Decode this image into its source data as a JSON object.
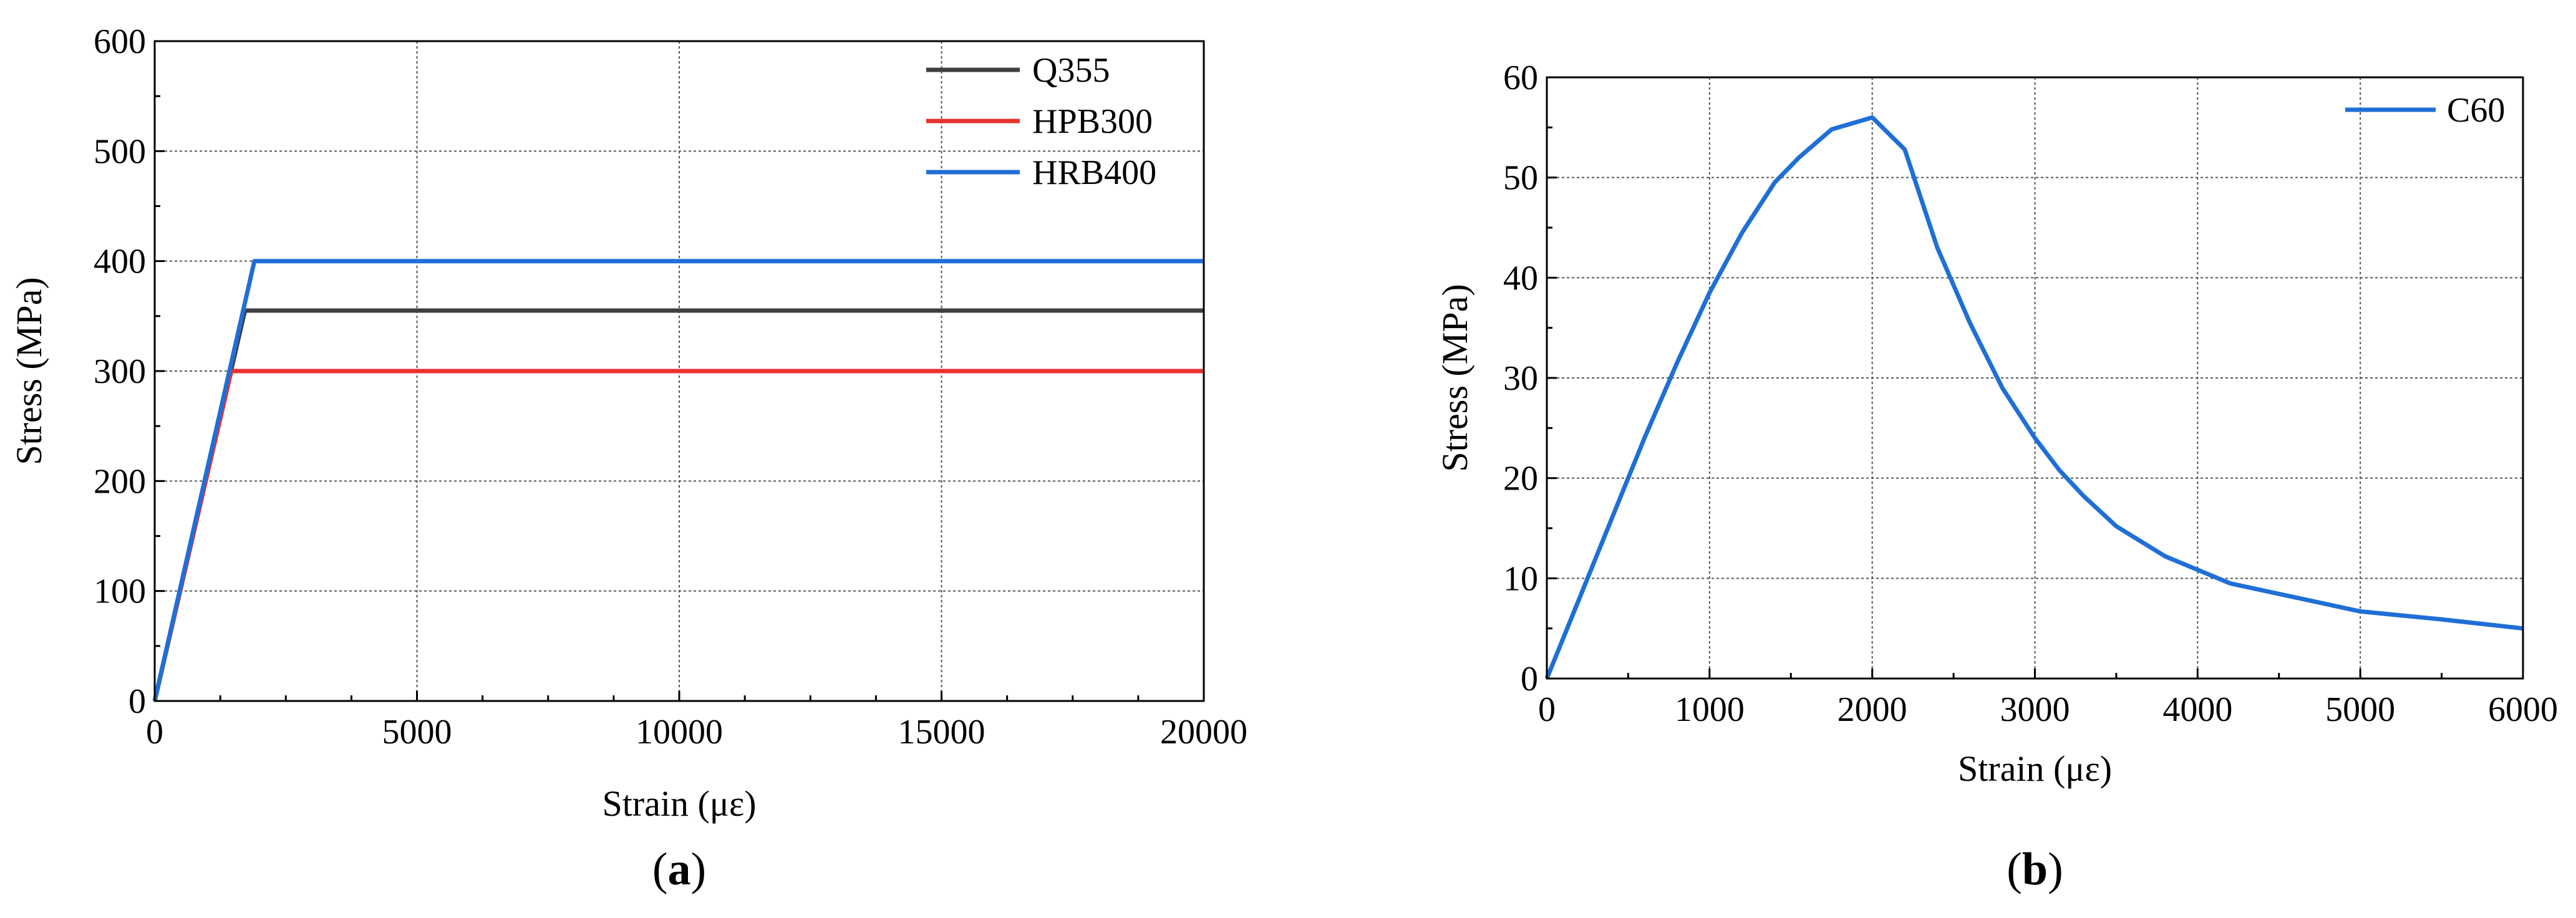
{
  "chart_data": [
    {
      "panel": "(a)",
      "panel_letter": "a",
      "type": "line",
      "xlabel": "Strain (με)",
      "ylabel": "Stress (MPa)",
      "xlim": [
        0,
        20000
      ],
      "ylim": [
        0,
        600
      ],
      "xticks": [
        "0",
        "5000",
        "10000",
        "15000",
        "20000"
      ],
      "yticks": [
        "0",
        "100",
        "200",
        "300",
        "400",
        "500",
        "600"
      ],
      "grid": true,
      "legend_position": "top-right",
      "series": [
        {
          "name": "Q355",
          "color": "#3f3f3f",
          "x": [
            0,
            1720,
            20000
          ],
          "y": [
            0,
            355,
            355
          ]
        },
        {
          "name": "HPB300",
          "color": "#e8322e",
          "x": [
            0,
            1460,
            20000
          ],
          "y": [
            0,
            300,
            300
          ]
        },
        {
          "name": "HRB400",
          "color": "#1f6fd6",
          "x": [
            0,
            1900,
            20000
          ],
          "y": [
            0,
            400,
            400
          ]
        }
      ]
    },
    {
      "panel": "(b)",
      "panel_letter": "b",
      "type": "line",
      "xlabel": "Strain (με)",
      "ylabel": "Stress (MPa)",
      "xlim": [
        0,
        6000
      ],
      "ylim": [
        0,
        60
      ],
      "xticks": [
        "0",
        "1000",
        "2000",
        "3000",
        "4000",
        "5000",
        "6000"
      ],
      "yticks": [
        "0",
        "10",
        "20",
        "30",
        "40",
        "50",
        "60"
      ],
      "grid": true,
      "legend_position": "top-right",
      "series": [
        {
          "name": "C60",
          "color": "#1f6fd6",
          "x": [
            0,
            200,
            400,
            600,
            800,
            1000,
            1200,
            1400,
            1550,
            1750,
            2000,
            2200,
            2400,
            2600,
            2800,
            3000,
            3150,
            3300,
            3500,
            3800,
            4200,
            4600,
            5000,
            5500,
            6000
          ],
          "y": [
            0,
            8,
            16,
            24,
            31.5,
            38.5,
            44.5,
            49.5,
            52,
            54.8,
            56,
            52.8,
            43,
            35.5,
            29,
            24,
            20.8,
            18.2,
            15.2,
            12.2,
            9.5,
            8.1,
            6.7,
            5.9,
            5.0
          ]
        }
      ]
    }
  ]
}
